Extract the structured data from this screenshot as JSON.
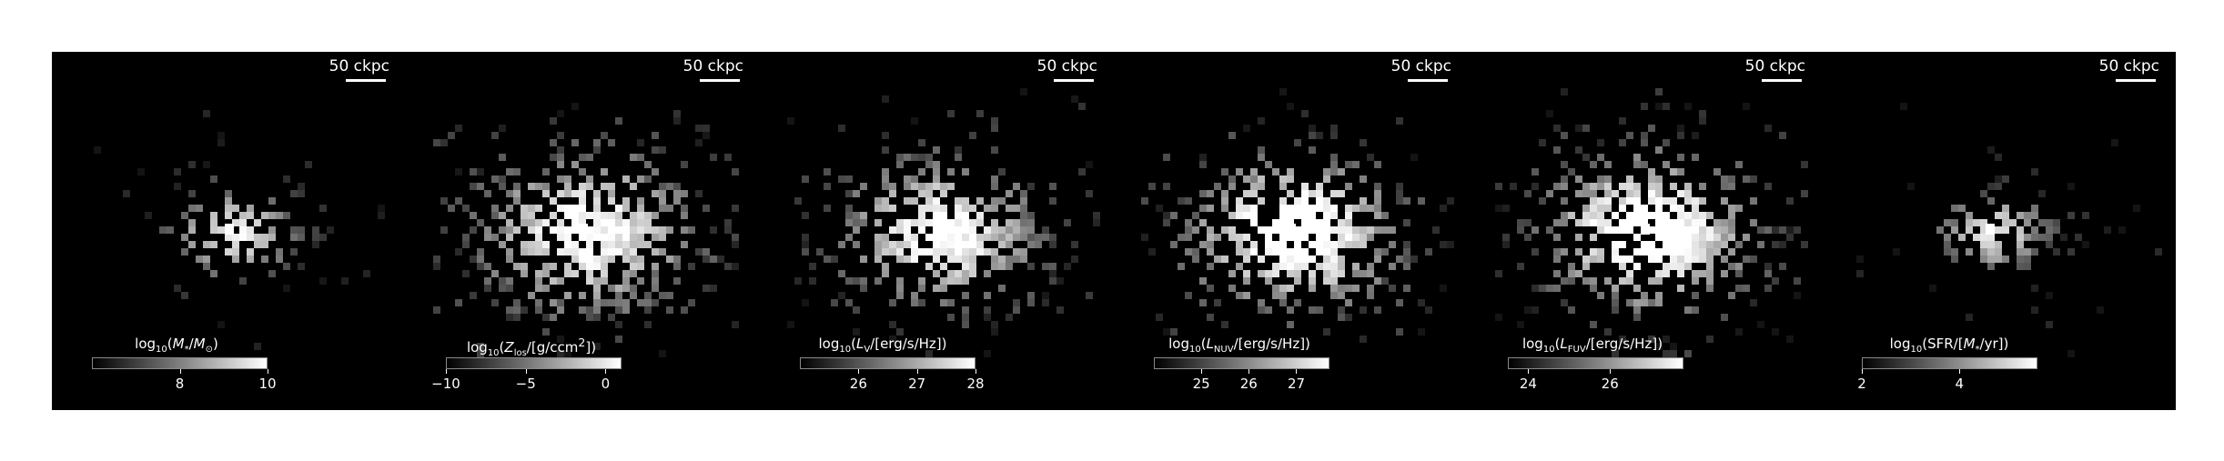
{
  "panels": [
    {
      "scale_label": "50 ckpc",
      "quantity": "Mstar",
      "cbar_min": 6,
      "cbar_max": 10,
      "ticks": [
        8,
        10
      ],
      "tick_labels": [
        "8",
        "10"
      ],
      "spread": 0.55,
      "density": 0.45,
      "center": 0.45
    },
    {
      "scale_label": "50 ckpc",
      "quantity": "Zlos",
      "cbar_min": -10,
      "cbar_max": 1,
      "ticks": [
        -10,
        -5,
        0
      ],
      "tick_labels": [
        "−10",
        "−5",
        "0"
      ],
      "spread": 1.0,
      "density": 0.75,
      "center": 0.55
    },
    {
      "scale_label": "50 ckpc",
      "quantity": "LV",
      "cbar_min": 25,
      "cbar_max": 28,
      "ticks": [
        26,
        27,
        28
      ],
      "tick_labels": [
        "26",
        "27",
        "28"
      ],
      "spread": 0.9,
      "density": 0.7,
      "center": 0.6
    },
    {
      "scale_label": "50 ckpc",
      "quantity": "LNUV",
      "cbar_min": 24,
      "cbar_max": 27.7,
      "ticks": [
        25,
        26,
        27
      ],
      "tick_labels": [
        "25",
        "26",
        "27"
      ],
      "spread": 0.95,
      "density": 0.75,
      "center": 0.8
    },
    {
      "scale_label": "50 ckpc",
      "quantity": "LFUV",
      "cbar_min": 23.5,
      "cbar_max": 27.8,
      "ticks": [
        24,
        26
      ],
      "tick_labels": [
        "24",
        "26"
      ],
      "spread": 0.95,
      "density": 0.75,
      "center": 0.8
    },
    {
      "scale_label": "50 ckpc",
      "quantity": "SFR",
      "cbar_min": 2,
      "cbar_max": 5.6,
      "ticks": [
        2,
        4
      ],
      "tick_labels": [
        "2",
        "4"
      ],
      "spread": 0.45,
      "density": 0.5,
      "center": 0.35
    }
  ]
}
